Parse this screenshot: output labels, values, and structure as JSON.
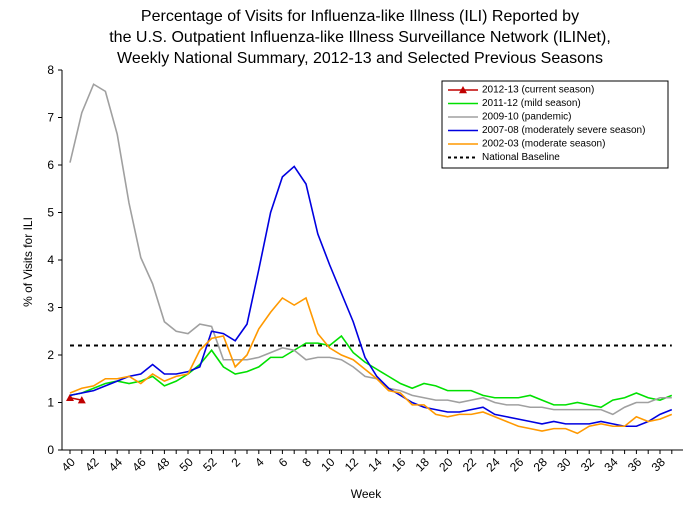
{
  "chart_data": {
    "type": "line",
    "title": [
      "Percentage of Visits for Influenza-like Illness (ILI) Reported by",
      "the U.S. Outpatient Influenza-like Illness Surveillance Network (ILINet),",
      "Weekly National Summary, 2012-13 and Selected Previous Seasons"
    ],
    "xlabel": "Week",
    "ylabel": "% of Visits for ILI",
    "categories": [
      "40",
      null,
      "42",
      null,
      "44",
      null,
      "46",
      null,
      "48",
      null,
      "50",
      null,
      "52",
      null,
      "2",
      null,
      "4",
      null,
      "6",
      null,
      "8",
      null,
      "10",
      null,
      "12",
      null,
      "14",
      null,
      "16",
      null,
      "18",
      null,
      "20",
      null,
      "22",
      null,
      "24",
      null,
      "26",
      null,
      "28",
      null,
      "30",
      null,
      "32",
      null,
      "34",
      null,
      "36",
      null,
      "38",
      null
    ],
    "ylim": [
      0,
      8
    ],
    "yticks": [
      0,
      1,
      2,
      3,
      4,
      5,
      6,
      7,
      8
    ],
    "grid": false,
    "legend": "top-right",
    "series": [
      {
        "name": "2012-13 (current season)",
        "color": "#c00000",
        "marker": "triangle",
        "values": [
          1.1,
          1.05,
          null,
          null,
          null,
          null,
          null,
          null,
          null,
          null,
          null,
          null,
          null,
          null,
          null,
          null,
          null,
          null,
          null,
          null,
          null,
          null,
          null,
          null,
          null,
          null,
          null,
          null,
          null,
          null,
          null,
          null,
          null,
          null,
          null,
          null,
          null,
          null,
          null,
          null,
          null,
          null,
          null,
          null,
          null,
          null,
          null,
          null,
          null,
          null,
          null,
          null
        ]
      },
      {
        "name": "2011-12 (mild season)",
        "color": "#00e000",
        "values": [
          1.15,
          1.2,
          1.3,
          1.4,
          1.45,
          1.4,
          1.45,
          1.55,
          1.35,
          1.45,
          1.6,
          1.8,
          2.1,
          1.75,
          1.6,
          1.65,
          1.75,
          1.95,
          1.95,
          2.1,
          2.25,
          2.25,
          2.2,
          2.4,
          2.05,
          1.85,
          1.7,
          1.55,
          1.4,
          1.3,
          1.4,
          1.35,
          1.25,
          1.25,
          1.25,
          1.15,
          1.1,
          1.1,
          1.1,
          1.15,
          1.05,
          0.95,
          0.95,
          1.0,
          0.95,
          0.9,
          1.05,
          1.1,
          1.2,
          1.1,
          1.05,
          1.15
        ]
      },
      {
        "name": "2009-10 (pandemic)",
        "color": "#a0a0a0",
        "values": [
          6.05,
          7.1,
          7.7,
          7.55,
          6.65,
          5.2,
          4.05,
          3.5,
          2.7,
          2.5,
          2.45,
          2.65,
          2.6,
          1.9,
          1.9,
          1.9,
          1.95,
          2.05,
          2.15,
          2.1,
          1.9,
          1.95,
          1.95,
          1.9,
          1.75,
          1.55,
          1.5,
          1.3,
          1.25,
          1.15,
          1.1,
          1.05,
          1.05,
          1.0,
          1.05,
          1.1,
          1.0,
          0.95,
          0.95,
          0.9,
          0.9,
          0.85,
          0.85,
          0.85,
          0.85,
          0.85,
          0.75,
          0.9,
          1.0,
          1.0,
          1.1,
          1.1
        ]
      },
      {
        "name": "2007-08 (moderately severe season)",
        "color": "#0000e0",
        "values": [
          1.15,
          1.2,
          1.25,
          1.35,
          1.45,
          1.55,
          1.6,
          1.8,
          1.6,
          1.6,
          1.65,
          1.75,
          2.5,
          2.45,
          2.3,
          2.65,
          3.8,
          5.0,
          5.75,
          5.97,
          5.6,
          4.55,
          3.9,
          3.3,
          2.7,
          1.95,
          1.55,
          1.3,
          1.15,
          1.0,
          0.9,
          0.85,
          0.8,
          0.8,
          0.85,
          0.9,
          0.75,
          0.7,
          0.65,
          0.6,
          0.55,
          0.6,
          0.55,
          0.55,
          0.55,
          0.6,
          0.55,
          0.5,
          0.5,
          0.6,
          0.75,
          0.85
        ]
      },
      {
        "name": "2002-03 (moderate season)",
        "color": "#ff9900",
        "values": [
          1.2,
          1.3,
          1.35,
          1.5,
          1.5,
          1.55,
          1.4,
          1.6,
          1.45,
          1.55,
          1.6,
          2.1,
          2.35,
          2.4,
          1.75,
          2.0,
          2.55,
          2.9,
          3.2,
          3.05,
          3.2,
          2.45,
          2.15,
          2.0,
          1.9,
          1.7,
          1.5,
          1.25,
          1.2,
          0.95,
          0.95,
          0.75,
          0.7,
          0.75,
          0.75,
          0.8,
          0.7,
          0.6,
          0.5,
          0.45,
          0.4,
          0.45,
          0.45,
          0.35,
          0.5,
          0.55,
          0.5,
          0.5,
          0.7,
          0.6,
          0.65,
          0.75
        ]
      }
    ],
    "baseline": {
      "name": "National Baseline",
      "value": 2.2,
      "color": "#000000"
    }
  }
}
